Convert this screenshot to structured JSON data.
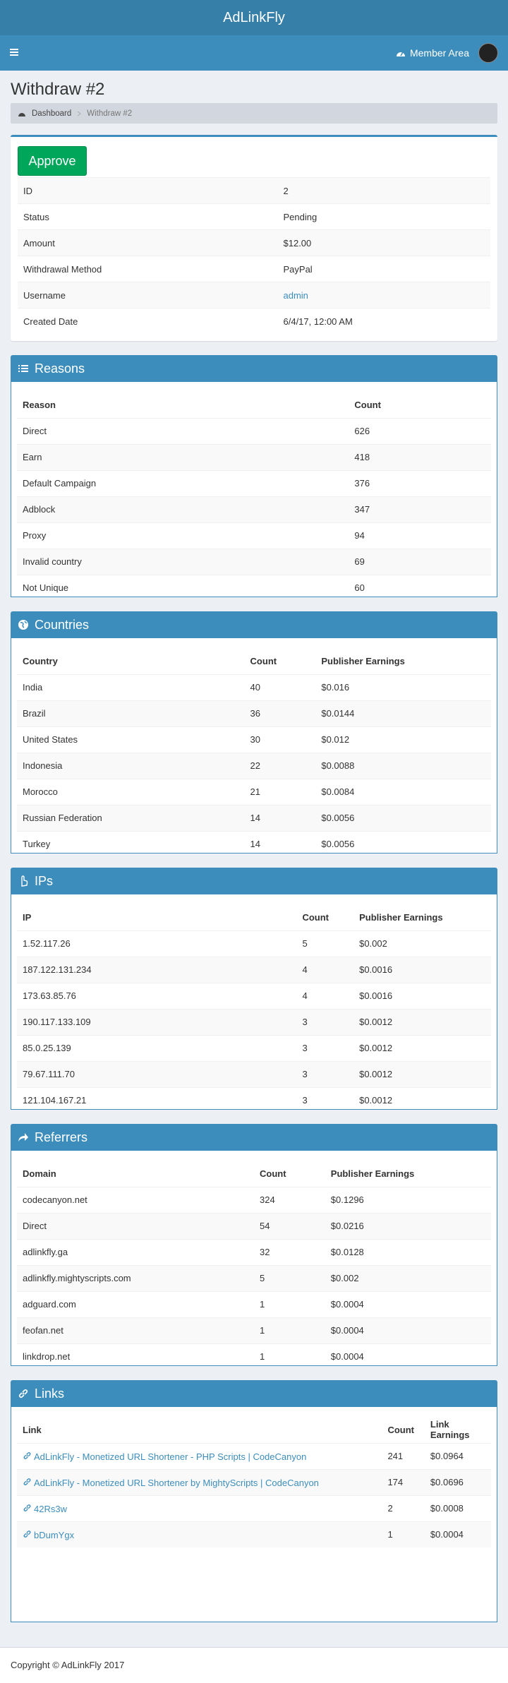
{
  "header": {
    "brand": "AdLinkFly",
    "member_area": "Member Area"
  },
  "page": {
    "title": "Withdraw #2",
    "breadcrumb": [
      "Dashboard",
      "Withdraw #2"
    ]
  },
  "withdraw": {
    "approve": "Approve",
    "rows": [
      [
        "ID",
        "2"
      ],
      [
        "Status",
        "Pending"
      ],
      [
        "Amount",
        "$12.00"
      ],
      [
        "Withdrawal Method",
        "PayPal"
      ],
      [
        "Username",
        "admin"
      ],
      [
        "Created Date",
        "6/4/17, 12:00 AM"
      ]
    ]
  },
  "panels": [
    {
      "title": "Reasons",
      "columns": [
        "Reason",
        "Count"
      ],
      "rows": [
        [
          "Direct",
          "626"
        ],
        [
          "Earn",
          "418"
        ],
        [
          "Default Campaign",
          "376"
        ],
        [
          "Adblock",
          "347"
        ],
        [
          "Proxy",
          "94"
        ],
        [
          "Invalid country",
          "69"
        ],
        [
          "Not Unique",
          "60"
        ]
      ]
    },
    {
      "title": "Countries",
      "columns": [
        "Country",
        "Count",
        "Publisher Earnings"
      ],
      "rows": [
        [
          "India",
          "40",
          "$0.016"
        ],
        [
          "Brazil",
          "36",
          "$0.0144"
        ],
        [
          "United States",
          "30",
          "$0.012"
        ],
        [
          "Indonesia",
          "22",
          "$0.0088"
        ],
        [
          "Morocco",
          "21",
          "$0.0084"
        ],
        [
          "Russian Federation",
          "14",
          "$0.0056"
        ],
        [
          "Turkey",
          "14",
          "$0.0056"
        ]
      ]
    },
    {
      "title": "IPs",
      "columns": [
        "IP",
        "Count",
        "Publisher Earnings"
      ],
      "rows": [
        [
          "1.52.117.26",
          "5",
          "$0.002"
        ],
        [
          "187.122.131.234",
          "4",
          "$0.0016"
        ],
        [
          "173.63.85.76",
          "4",
          "$0.0016"
        ],
        [
          "190.117.133.109",
          "3",
          "$0.0012"
        ],
        [
          "85.0.25.139",
          "3",
          "$0.0012"
        ],
        [
          "79.67.111.70",
          "3",
          "$0.0012"
        ],
        [
          "121.104.167.21",
          "3",
          "$0.0012"
        ]
      ]
    },
    {
      "title": "Referrers",
      "columns": [
        "Domain",
        "Count",
        "Publisher Earnings"
      ],
      "rows": [
        [
          "codecanyon.net",
          "324",
          "$0.1296"
        ],
        [
          "Direct",
          "54",
          "$0.0216"
        ],
        [
          "adlinkfly.ga",
          "32",
          "$0.0128"
        ],
        [
          "adlinkfly.mightyscripts.com",
          "5",
          "$0.002"
        ],
        [
          "adguard.com",
          "1",
          "$0.0004"
        ],
        [
          "feofan.net",
          "1",
          "$0.0004"
        ],
        [
          "linkdrop.net",
          "1",
          "$0.0004"
        ]
      ]
    },
    {
      "title": "Links",
      "columns": [
        "Link",
        "Count",
        "Link Earnings"
      ],
      "rows": [
        [
          "AdLinkFly - Monetized URL Shortener - PHP Scripts | CodeCanyon",
          "241",
          "$0.0964"
        ],
        [
          "AdLinkFly - Monetized URL Shortener by MightyScripts | CodeCanyon",
          "174",
          "$0.0696"
        ],
        [
          "42Rs3w",
          "2",
          "$0.0008"
        ],
        [
          "bDumYgx",
          "1",
          "$0.0004"
        ]
      ]
    }
  ],
  "footer": "Copyright © AdLinkFly 2017"
}
